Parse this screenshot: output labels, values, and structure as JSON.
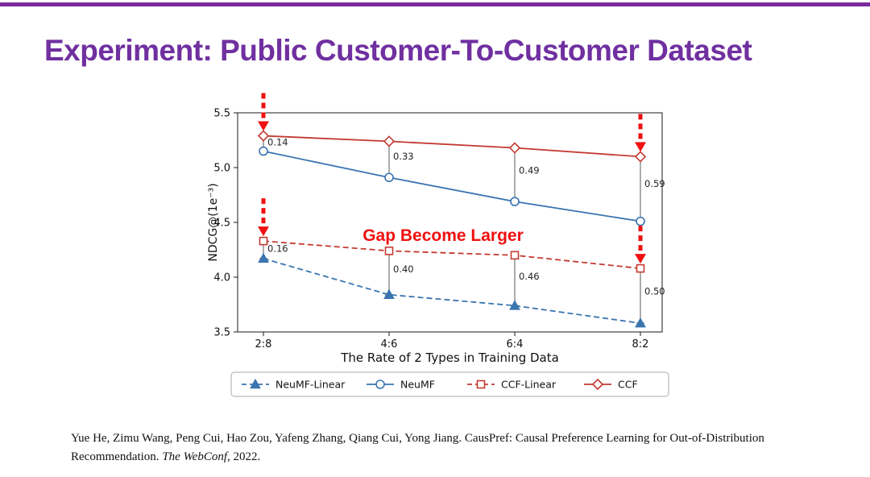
{
  "slide": {
    "title": "Experiment: Public Customer-To-Customer Dataset",
    "title_color": "#7030A0",
    "top_bar_color": "#7B2C9E"
  },
  "citation": {
    "line1": "Yue He, Zimu Wang, Peng Cui, Hao Zou, Yafeng Zhang, Qiang Cui, Yong Jiang. CausPref: Causal Preference Learning for Out-of-Distribution",
    "line2_before": "Recommendation. ",
    "line2_italic": "The WebConf",
    "line2_after": ", 2022."
  },
  "chart_data": {
    "type": "line",
    "xlabel": "The Rate of 2 Types in Training Data",
    "ylabel": "NDCG@(1e⁻³)",
    "categories": [
      "2:8",
      "4:6",
      "6:4",
      "8:2"
    ],
    "ylim": [
      3.5,
      5.5
    ],
    "yticks": [
      5.5,
      5.0,
      4.5,
      4.0,
      3.5
    ],
    "grid": false,
    "legend_position": "bottom",
    "series": [
      {
        "name": "NeuMF-Linear",
        "values": [
          4.17,
          3.84,
          3.74,
          3.58
        ],
        "color": "#3A75B0",
        "style": "dashed",
        "marker": "triangle",
        "marker_filled": true
      },
      {
        "name": "NeuMF",
        "values": [
          5.15,
          4.91,
          4.69,
          4.51
        ],
        "color": "#3A75B0",
        "style": "solid",
        "marker": "circle",
        "marker_filled": false
      },
      {
        "name": "CCF-Linear",
        "values": [
          4.33,
          4.24,
          4.2,
          4.08
        ],
        "color": "#C33A32",
        "style": "dashed",
        "marker": "square",
        "marker_filled": false
      },
      {
        "name": "CCF",
        "values": [
          5.29,
          5.24,
          5.18,
          5.1
        ],
        "color": "#C33A32",
        "style": "solid",
        "marker": "diamond",
        "marker_filled": false
      }
    ],
    "gap_pairs": [
      {
        "upper": "CCF",
        "lower": "NeuMF",
        "labels": [
          "0.14",
          "0.33",
          "0.49",
          "0.59"
        ]
      },
      {
        "upper": "CCF-Linear",
        "lower": "NeuMF-Linear",
        "labels": [
          "0.16",
          "0.40",
          "0.46",
          "0.50"
        ]
      }
    ],
    "arrows": [
      {
        "series": "CCF",
        "index": 0
      },
      {
        "series": "CCF",
        "index": 3
      },
      {
        "series": "CCF-Linear",
        "index": 0
      },
      {
        "series": "CCF-Linear",
        "index": 3
      }
    ],
    "arrow_color": "#EE1111",
    "annotation": {
      "text": "Gap Become Larger",
      "color": "#EE1111"
    }
  }
}
